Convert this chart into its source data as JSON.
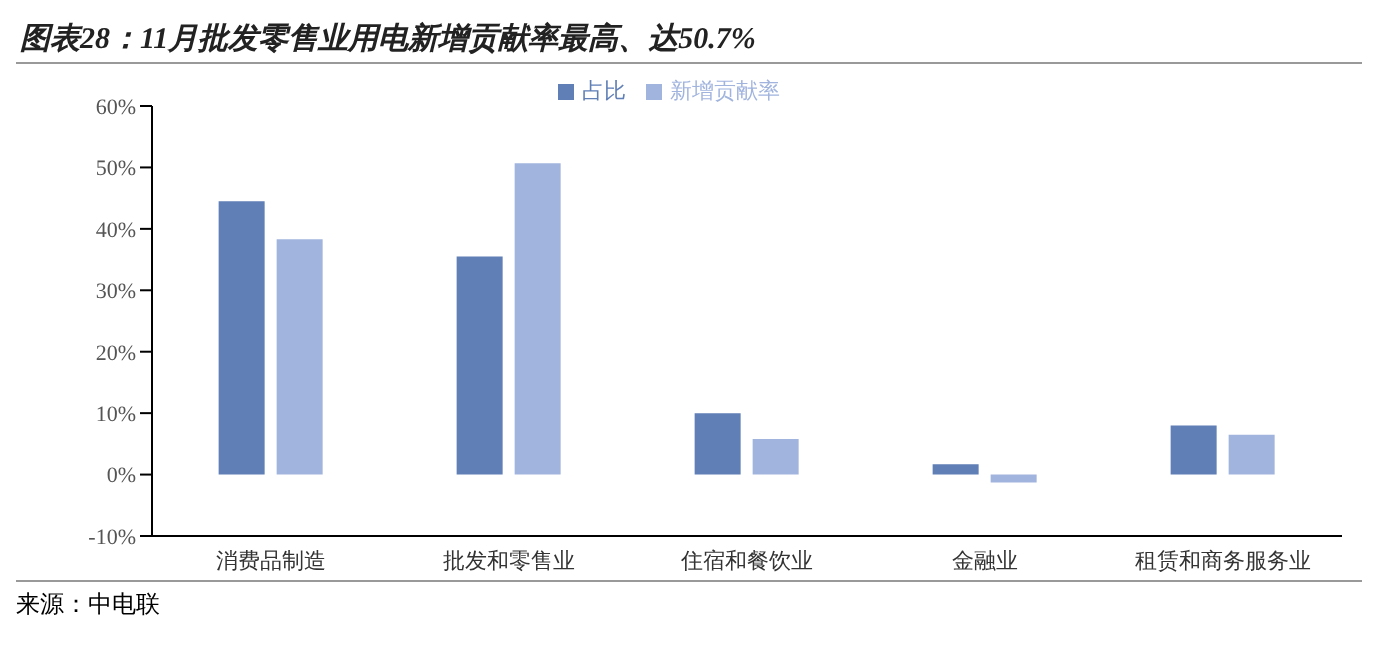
{
  "chart_data": {
    "type": "bar",
    "title": "图表28：11月批发零售业用电新增贡献率最高、达50.7%",
    "categories": [
      "消费品制造",
      "批发和零售业",
      "住宿和餐饮业",
      "金融业",
      "租赁和商务服务业"
    ],
    "series": [
      {
        "name": "占比",
        "color": "#5f7fb6",
        "values": [
          44.5,
          35.5,
          10,
          1.7,
          8
        ]
      },
      {
        "name": "新增贡献率",
        "color": "#a1b4de",
        "values": [
          38.3,
          50.7,
          5.8,
          -1.3,
          6.5
        ]
      }
    ],
    "ylim": [
      -10,
      60
    ],
    "yticks": [
      {
        "value": -10,
        "label": "-10%"
      },
      {
        "value": 0,
        "label": "0%"
      },
      {
        "value": 10,
        "label": "10%"
      },
      {
        "value": 20,
        "label": "20%"
      },
      {
        "value": 30,
        "label": "30%"
      },
      {
        "value": 40,
        "label": "40%"
      },
      {
        "value": 50,
        "label": "50%"
      },
      {
        "value": 60,
        "label": "60%"
      }
    ],
    "grid": false,
    "legend": "top",
    "annotations": [
      "来源：中电联"
    ]
  }
}
